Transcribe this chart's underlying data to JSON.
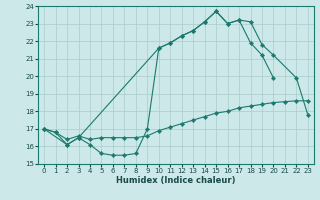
{
  "xlabel": "Humidex (Indice chaleur)",
  "bg_color": "#cce8e8",
  "grid_color": "#aacccc",
  "line_color": "#1a7a6e",
  "xlim": [
    -0.5,
    23.5
  ],
  "ylim": [
    15,
    24
  ],
  "xticks": [
    0,
    1,
    2,
    3,
    4,
    5,
    6,
    7,
    8,
    9,
    10,
    11,
    12,
    13,
    14,
    15,
    16,
    17,
    18,
    19,
    20,
    21,
    22,
    23
  ],
  "yticks": [
    15,
    16,
    17,
    18,
    19,
    20,
    21,
    22,
    23,
    24
  ],
  "series1_x": [
    0,
    1,
    2,
    3,
    4,
    5,
    6,
    7,
    8,
    9,
    10,
    11,
    12,
    13,
    14,
    15,
    16,
    17,
    18,
    19,
    20
  ],
  "series1_y": [
    17.0,
    16.8,
    16.1,
    16.5,
    16.1,
    15.6,
    15.5,
    15.5,
    15.6,
    17.0,
    21.6,
    21.9,
    22.3,
    22.6,
    23.1,
    23.7,
    23.0,
    23.2,
    21.9,
    21.2,
    19.9
  ],
  "series2_x": [
    0,
    1,
    2,
    3,
    4,
    5,
    6,
    7,
    8,
    9,
    10,
    11,
    12,
    13,
    14,
    15,
    16,
    17,
    18,
    19,
    20,
    21,
    22,
    23
  ],
  "series2_y": [
    17.0,
    16.8,
    16.4,
    16.6,
    16.4,
    16.5,
    16.5,
    16.5,
    16.5,
    16.6,
    16.9,
    17.1,
    17.3,
    17.5,
    17.7,
    17.9,
    18.0,
    18.2,
    18.3,
    18.4,
    18.5,
    18.55,
    18.6,
    18.6
  ],
  "series3_x": [
    0,
    2,
    3,
    10,
    11,
    12,
    13,
    14,
    15,
    16,
    17,
    18,
    19,
    20,
    22,
    23
  ],
  "series3_y": [
    17.0,
    16.1,
    16.5,
    21.6,
    21.9,
    22.3,
    22.6,
    23.1,
    23.7,
    23.0,
    23.2,
    23.1,
    21.8,
    21.2,
    19.9,
    17.8
  ]
}
